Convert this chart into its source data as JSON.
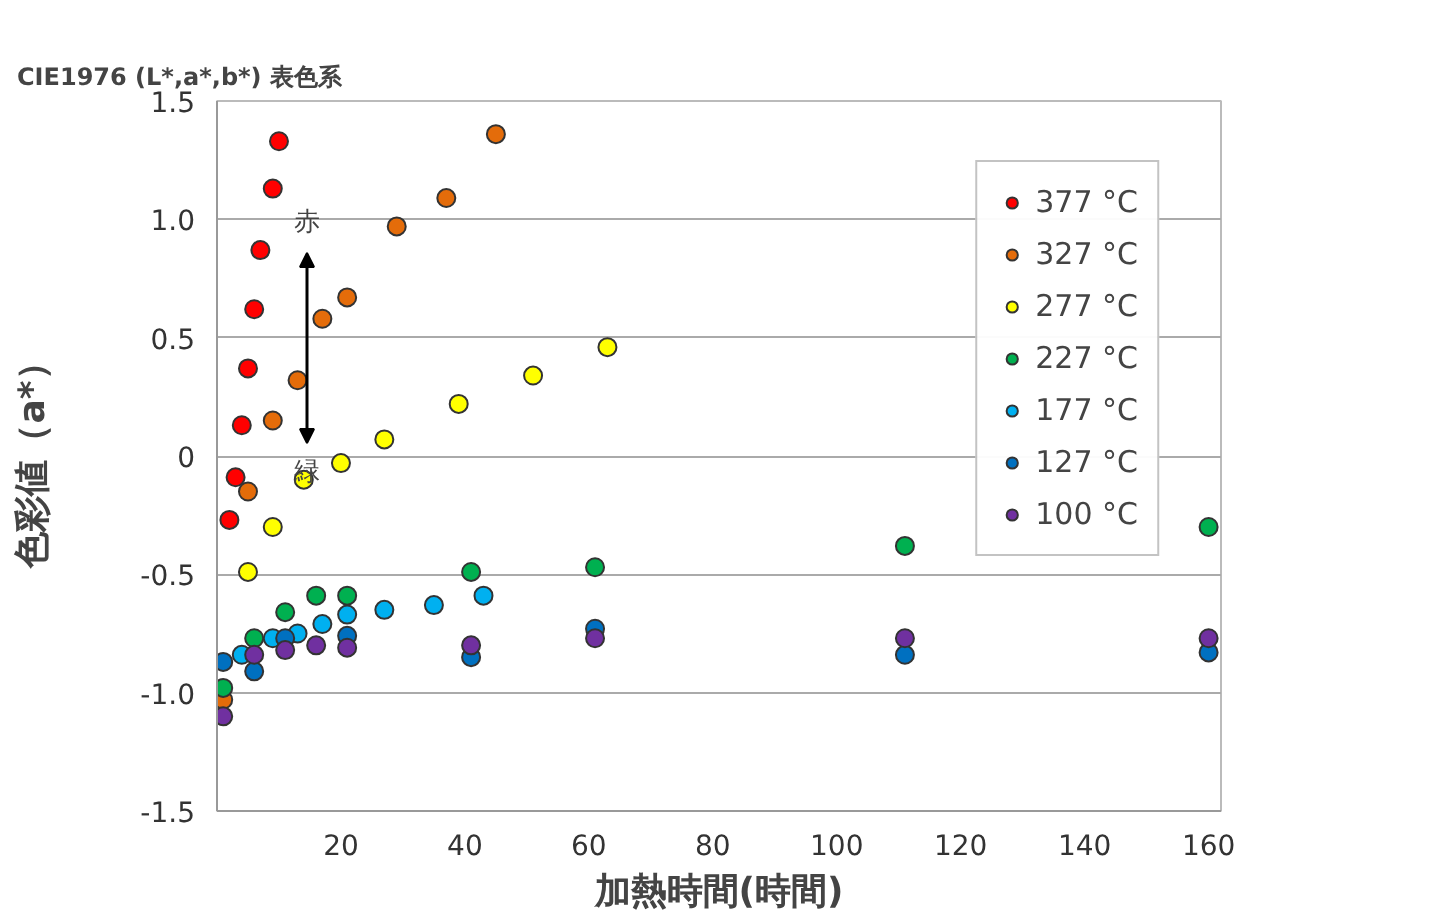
{
  "chart_data": {
    "type": "scatter",
    "title": "CIE1976 (L*,a*,b*) 表色系",
    "xlabel": "加熱時間(時間)",
    "ylabel": "色彩値（a*）",
    "annotations": [
      "赤",
      "緑"
    ],
    "xlim": [
      0,
      162
    ],
    "xticks": [
      20,
      40,
      60,
      80,
      100,
      120,
      140,
      160
    ],
    "ylim": [
      -1.5,
      1.5
    ],
    "yticks": [
      {
        "value": -1.5,
        "label": "-1.5"
      },
      {
        "value": -1.0,
        "label": "-1.0"
      },
      {
        "value": -0.5,
        "label": "-0.5"
      },
      {
        "value": 0,
        "label": "0"
      },
      {
        "value": 0.5,
        "label": "0.5"
      },
      {
        "value": 1.0,
        "label": "1.0"
      },
      {
        "value": 1.5,
        "label": "1.5"
      }
    ],
    "grid": "y",
    "legend": "top right",
    "marker": "circle",
    "series": [
      {
        "name": "377 °C",
        "color": "#ff0000",
        "x": [
          2,
          3,
          4,
          5,
          6,
          7,
          9,
          10
        ],
        "values": [
          -0.27,
          -0.09,
          0.13,
          0.37,
          0.62,
          0.87,
          1.13,
          1.33
        ]
      },
      {
        "name": "327 °C",
        "color": "#e46c0a",
        "x": [
          1,
          5,
          9,
          13,
          17,
          21,
          29,
          37,
          45
        ],
        "values": [
          -1.03,
          -0.15,
          0.15,
          0.32,
          0.58,
          0.67,
          0.97,
          1.09,
          1.36
        ]
      },
      {
        "name": "277 °C",
        "color": "#ffff00",
        "x": [
          5,
          9,
          14,
          20,
          27,
          39,
          51,
          63
        ],
        "values": [
          -0.49,
          -0.3,
          -0.1,
          -0.03,
          0.07,
          0.22,
          0.34,
          0.46
        ]
      },
      {
        "name": "227 °C",
        "color": "#00b050",
        "x": [
          1,
          6,
          11,
          16,
          21,
          41,
          61,
          111,
          160
        ],
        "values": [
          -0.98,
          -0.77,
          -0.66,
          -0.59,
          -0.59,
          -0.49,
          -0.47,
          -0.38,
          -0.3
        ]
      },
      {
        "name": "177 °C",
        "color": "#00b0f0",
        "x": [
          4,
          9,
          13,
          17,
          21,
          27,
          35,
          43
        ],
        "values": [
          -0.84,
          -0.77,
          -0.75,
          -0.71,
          -0.67,
          -0.65,
          -0.63,
          -0.59
        ]
      },
      {
        "name": "127 °C",
        "color": "#0070c0",
        "x": [
          1,
          6,
          11,
          21,
          41,
          61,
          111,
          160
        ],
        "values": [
          -0.87,
          -0.91,
          -0.77,
          -0.76,
          -0.85,
          -0.73,
          -0.84,
          -0.83
        ]
      },
      {
        "name": "100 °C",
        "color": "#7030a0",
        "x": [
          1,
          6,
          11,
          16,
          21,
          41,
          61,
          111,
          160
        ],
        "values": [
          -1.1,
          -0.84,
          -0.82,
          -0.8,
          -0.81,
          -0.8,
          -0.77,
          -0.77,
          -0.77
        ]
      }
    ]
  }
}
